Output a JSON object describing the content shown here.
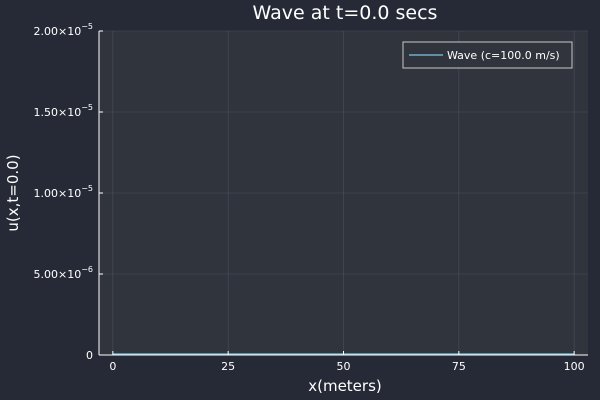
{
  "chart_data": {
    "type": "line",
    "title": "Wave at t=0.0 secs",
    "xlabel": "x(meters)",
    "ylabel": "u(x,t=0.0)",
    "xlim": [
      -3,
      103
    ],
    "ylim": [
      0,
      2e-05
    ],
    "grid": true,
    "legend_position": "top-right",
    "x_ticks": [
      {
        "value": 0,
        "label": "0"
      },
      {
        "value": 25,
        "label": "25"
      },
      {
        "value": 50,
        "label": "50"
      },
      {
        "value": 75,
        "label": "75"
      },
      {
        "value": 100,
        "label": "100"
      }
    ],
    "y_ticks": [
      {
        "value": 0,
        "mantissa": "0",
        "exp": ""
      },
      {
        "value": 5e-06,
        "mantissa": "5.00×10",
        "exp": "−6"
      },
      {
        "value": 1e-05,
        "mantissa": "1.00×10",
        "exp": "−5"
      },
      {
        "value": 1.5e-05,
        "mantissa": "1.50×10",
        "exp": "−5"
      },
      {
        "value": 2e-05,
        "mantissa": "2.00×10",
        "exp": "−5"
      }
    ],
    "series": [
      {
        "name": "Wave (c=100.0 m/s)",
        "color": "#7ec8e3",
        "x": [
          0,
          100
        ],
        "y": [
          0,
          0
        ]
      }
    ]
  },
  "colors": {
    "background": "#262a36",
    "plot_background": "#30343d",
    "text": "#ffffff"
  }
}
